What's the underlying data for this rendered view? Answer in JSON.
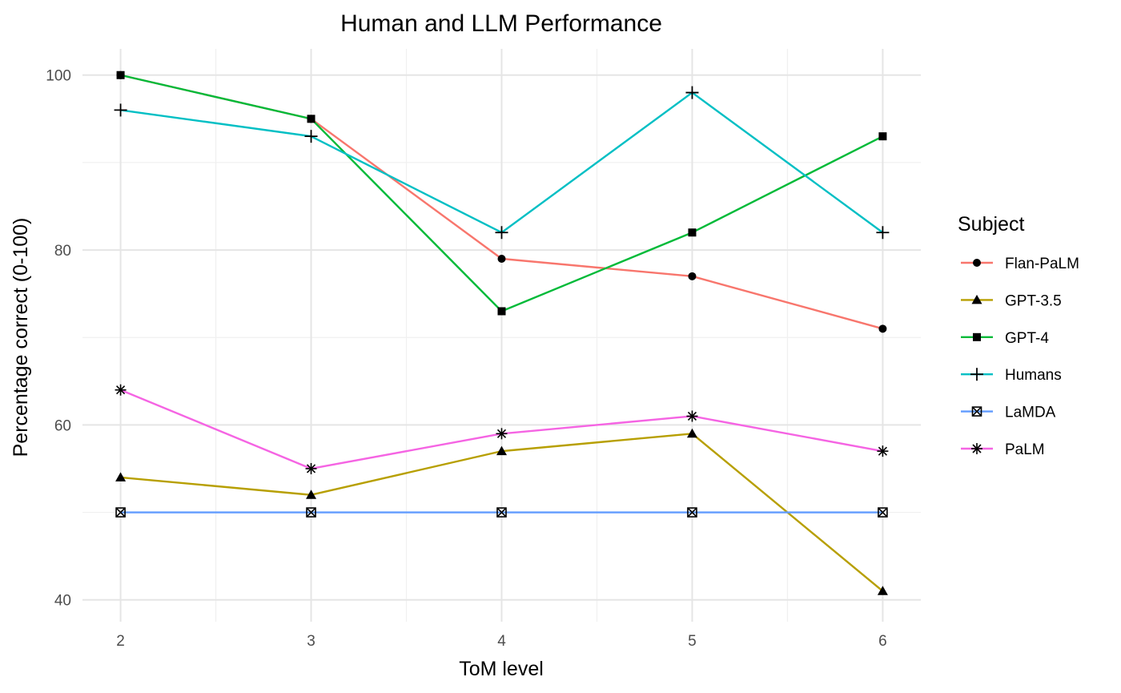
{
  "chart_data": {
    "type": "line",
    "title": "Human and LLM Performance",
    "xlabel": "ToM level",
    "ylabel": "Percentage correct (0-100)",
    "x": [
      2,
      3,
      4,
      5,
      6
    ],
    "xlim": [
      1.8,
      6.2
    ],
    "ylim": [
      37.5,
      103
    ],
    "x_ticks": [
      2,
      3,
      4,
      5,
      6
    ],
    "y_ticks": [
      40,
      60,
      80,
      100
    ],
    "grid": true,
    "legend": {
      "title": "Subject",
      "placement": "right"
    },
    "series": [
      {
        "name": "Flan-PaLM",
        "color": "#F8766D",
        "shape": "circle",
        "values": [
          100,
          95,
          79,
          77,
          71
        ]
      },
      {
        "name": "GPT-3.5",
        "color": "#B79F00",
        "shape": "triangle",
        "values": [
          54,
          52,
          57,
          59,
          41
        ]
      },
      {
        "name": "GPT-4",
        "color": "#00BA38",
        "shape": "square",
        "values": [
          100,
          95,
          73,
          82,
          93
        ]
      },
      {
        "name": "Humans",
        "color": "#00BFC4",
        "shape": "plus",
        "values": [
          96,
          93,
          82,
          98,
          82
        ]
      },
      {
        "name": "LaMDA",
        "color": "#619CFF",
        "shape": "boxcross",
        "values": [
          50,
          50,
          50,
          50,
          50
        ]
      },
      {
        "name": "PaLM",
        "color": "#F564E3",
        "shape": "asterisk",
        "values": [
          64,
          55,
          59,
          61,
          57
        ]
      }
    ]
  }
}
